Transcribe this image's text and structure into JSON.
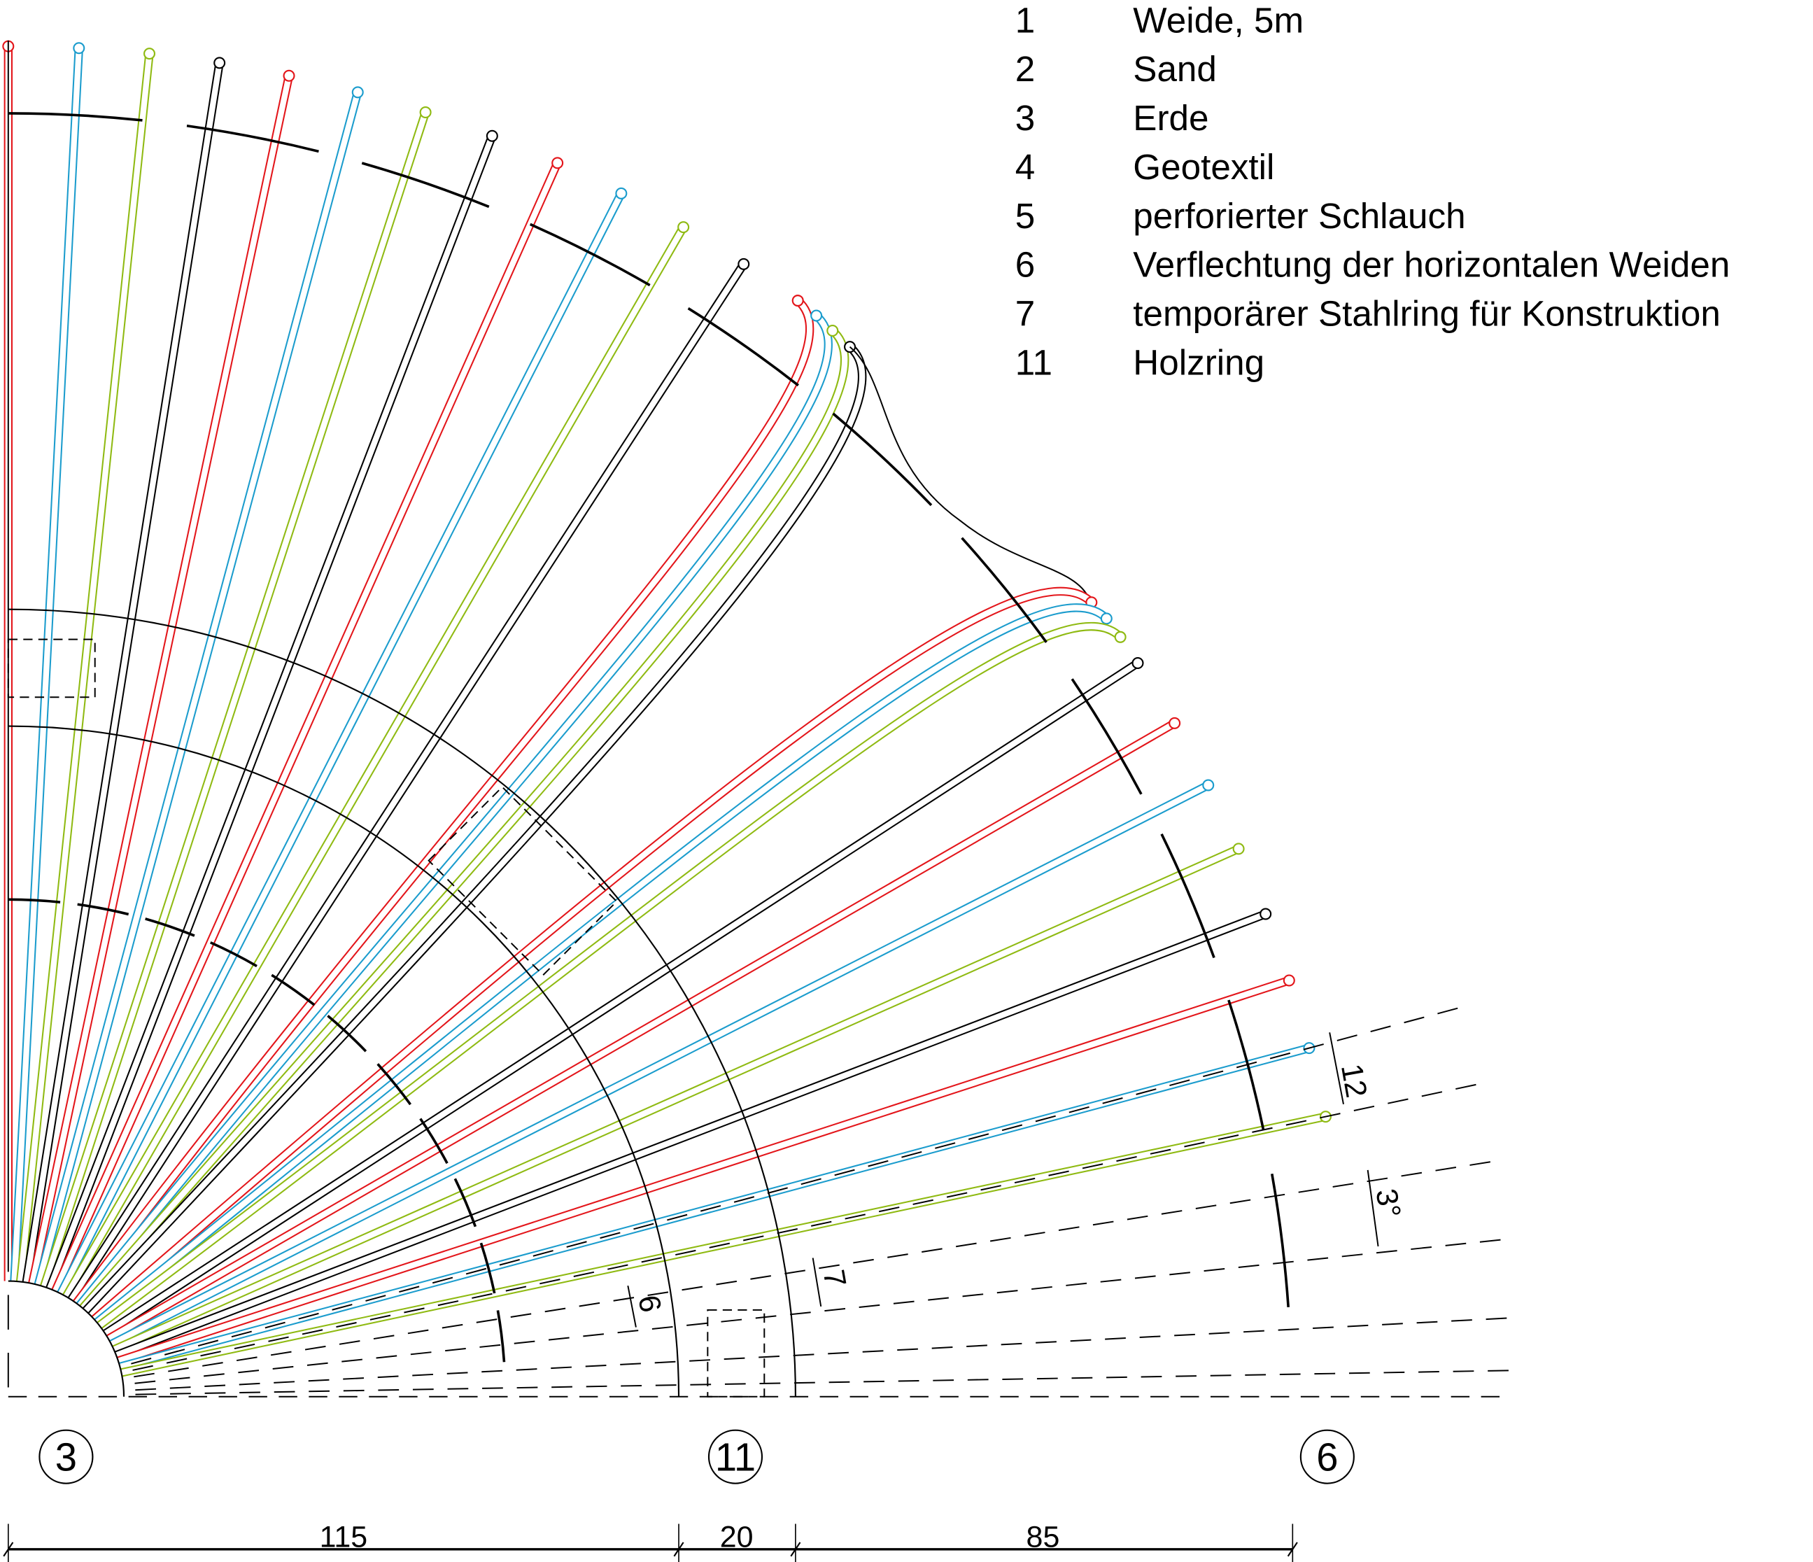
{
  "legend": [
    {
      "num": "1",
      "label": "Weide, 5m"
    },
    {
      "num": "2",
      "label": "Sand"
    },
    {
      "num": "3",
      "label": "Erde"
    },
    {
      "num": "4",
      "label": "Geotextil"
    },
    {
      "num": "5",
      "label": "perforierter Schlauch"
    },
    {
      "num": "6",
      "label": "Verflechtung der horizontalen Weiden"
    },
    {
      "num": "7",
      "label": "temporärer Stahlring für Konstruktion"
    },
    {
      "num": "11",
      "label": "Holzring"
    }
  ],
  "markers": [
    "3",
    "11",
    "6"
  ],
  "dimensions": {
    "bottom": [
      "115",
      "20",
      "85"
    ],
    "spacing": "12",
    "angle": "3°",
    "ring_a": "7",
    "ring_b": "6"
  },
  "colors": {
    "willow_cycle": [
      "#e3151a",
      "#1b9ccd",
      "#8fba12",
      "#000000"
    ],
    "line": "#000000"
  }
}
